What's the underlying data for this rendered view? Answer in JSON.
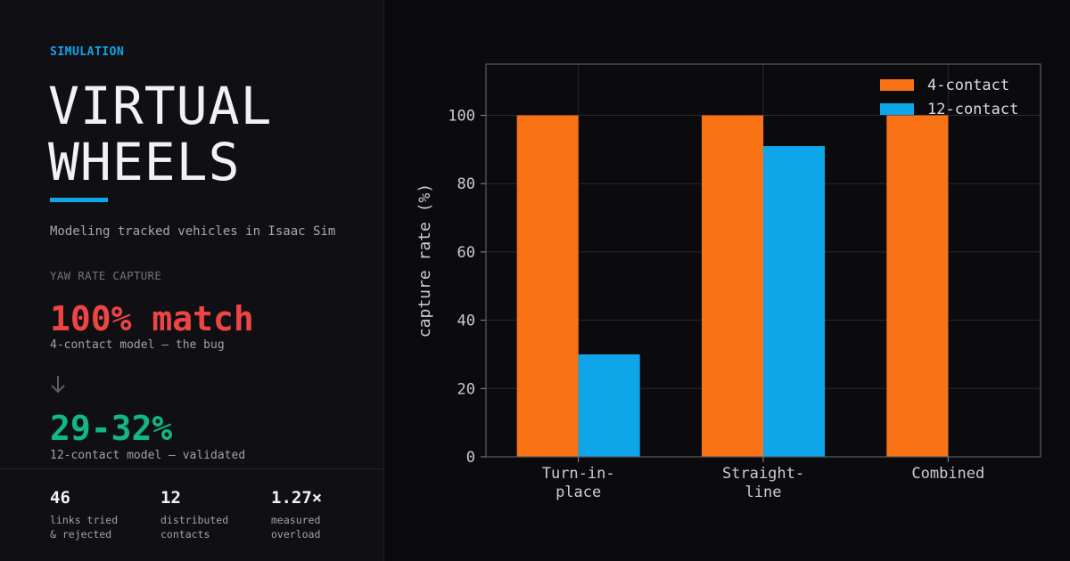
{
  "colors": {
    "accent_blue": "#0ea5e9",
    "accent_red": "#ef4444",
    "accent_green": "#10b981",
    "bar_orange": "#f97316",
    "bar_blue": "#0ea5e9"
  },
  "header": {
    "section_label": "SIMULATION",
    "title_line1": "VIRTUAL",
    "title_line2": "WHEELS",
    "subtitle": "Modeling tracked vehicles in Isaac Sim"
  },
  "metric": {
    "label": "YAW RATE CAPTURE",
    "before_value": "100% match",
    "before_caption": "4-contact model — the bug",
    "arrow_icon": "arrow-down-icon",
    "after_value": "29-32%",
    "after_caption": "12-contact model — validated"
  },
  "counters": [
    {
      "value": "46",
      "desc": "links tried\n& rejected"
    },
    {
      "value": "12",
      "desc": "distributed\ncontacts"
    },
    {
      "value": "1.27×",
      "desc": "measured\noverload"
    }
  ],
  "chart_data": {
    "type": "bar",
    "categories": [
      [
        "Turn-in-",
        "place"
      ],
      [
        "Straight-",
        "line"
      ],
      [
        "Combined"
      ]
    ],
    "series": [
      {
        "name": "4-contact",
        "values": [
          100,
          100,
          100
        ],
        "color": "#f97316"
      },
      {
        "name": "12-contact",
        "values": [
          30,
          91,
          0
        ],
        "color": "#0ea5e9"
      }
    ],
    "ylabel": "capture rate (%)",
    "xlabel": "",
    "ylim": [
      0,
      115
    ],
    "yticks": [
      0,
      20,
      40,
      60,
      80,
      100
    ],
    "grid": true,
    "legend_position": "top-right"
  }
}
